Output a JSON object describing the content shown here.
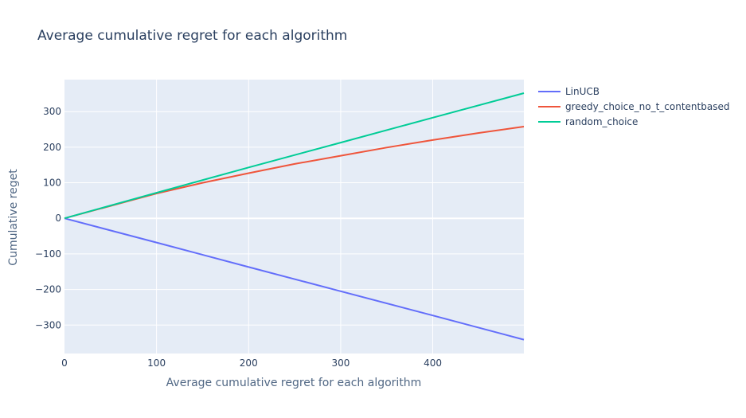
{
  "chart_data": {
    "type": "line",
    "title": "Average cumulative regret for each algorithm",
    "xlabel": "Average cumulative regret for each algorithm",
    "ylabel": "Cumulative reget",
    "xlim": [
      0,
      499
    ],
    "ylim": [
      -380,
      390
    ],
    "xticks": [
      0,
      100,
      200,
      300,
      400
    ],
    "yticks": [
      -300,
      -200,
      -100,
      0,
      100,
      200,
      300
    ],
    "grid": true,
    "legend_position": "top-right outside",
    "background": "#e5ecf6",
    "series": [
      {
        "name": "LinUCB",
        "color": "#636efa",
        "x": [
          0,
          100,
          200,
          300,
          400,
          499
        ],
        "y": [
          0,
          -68,
          -137,
          -205,
          -273,
          -341
        ]
      },
      {
        "name": "greedy_choice_no_t_contentbased",
        "color": "#ef553b",
        "x": [
          0,
          50,
          100,
          150,
          200,
          250,
          300,
          350,
          400,
          450,
          499
        ],
        "y": [
          0,
          35,
          70,
          100,
          127,
          153,
          176,
          199,
          220,
          240,
          258
        ]
      },
      {
        "name": "random_choice",
        "color": "#00cc96",
        "x": [
          0,
          100,
          200,
          300,
          400,
          499
        ],
        "y": [
          0,
          72,
          143,
          213,
          283,
          352
        ]
      }
    ]
  }
}
